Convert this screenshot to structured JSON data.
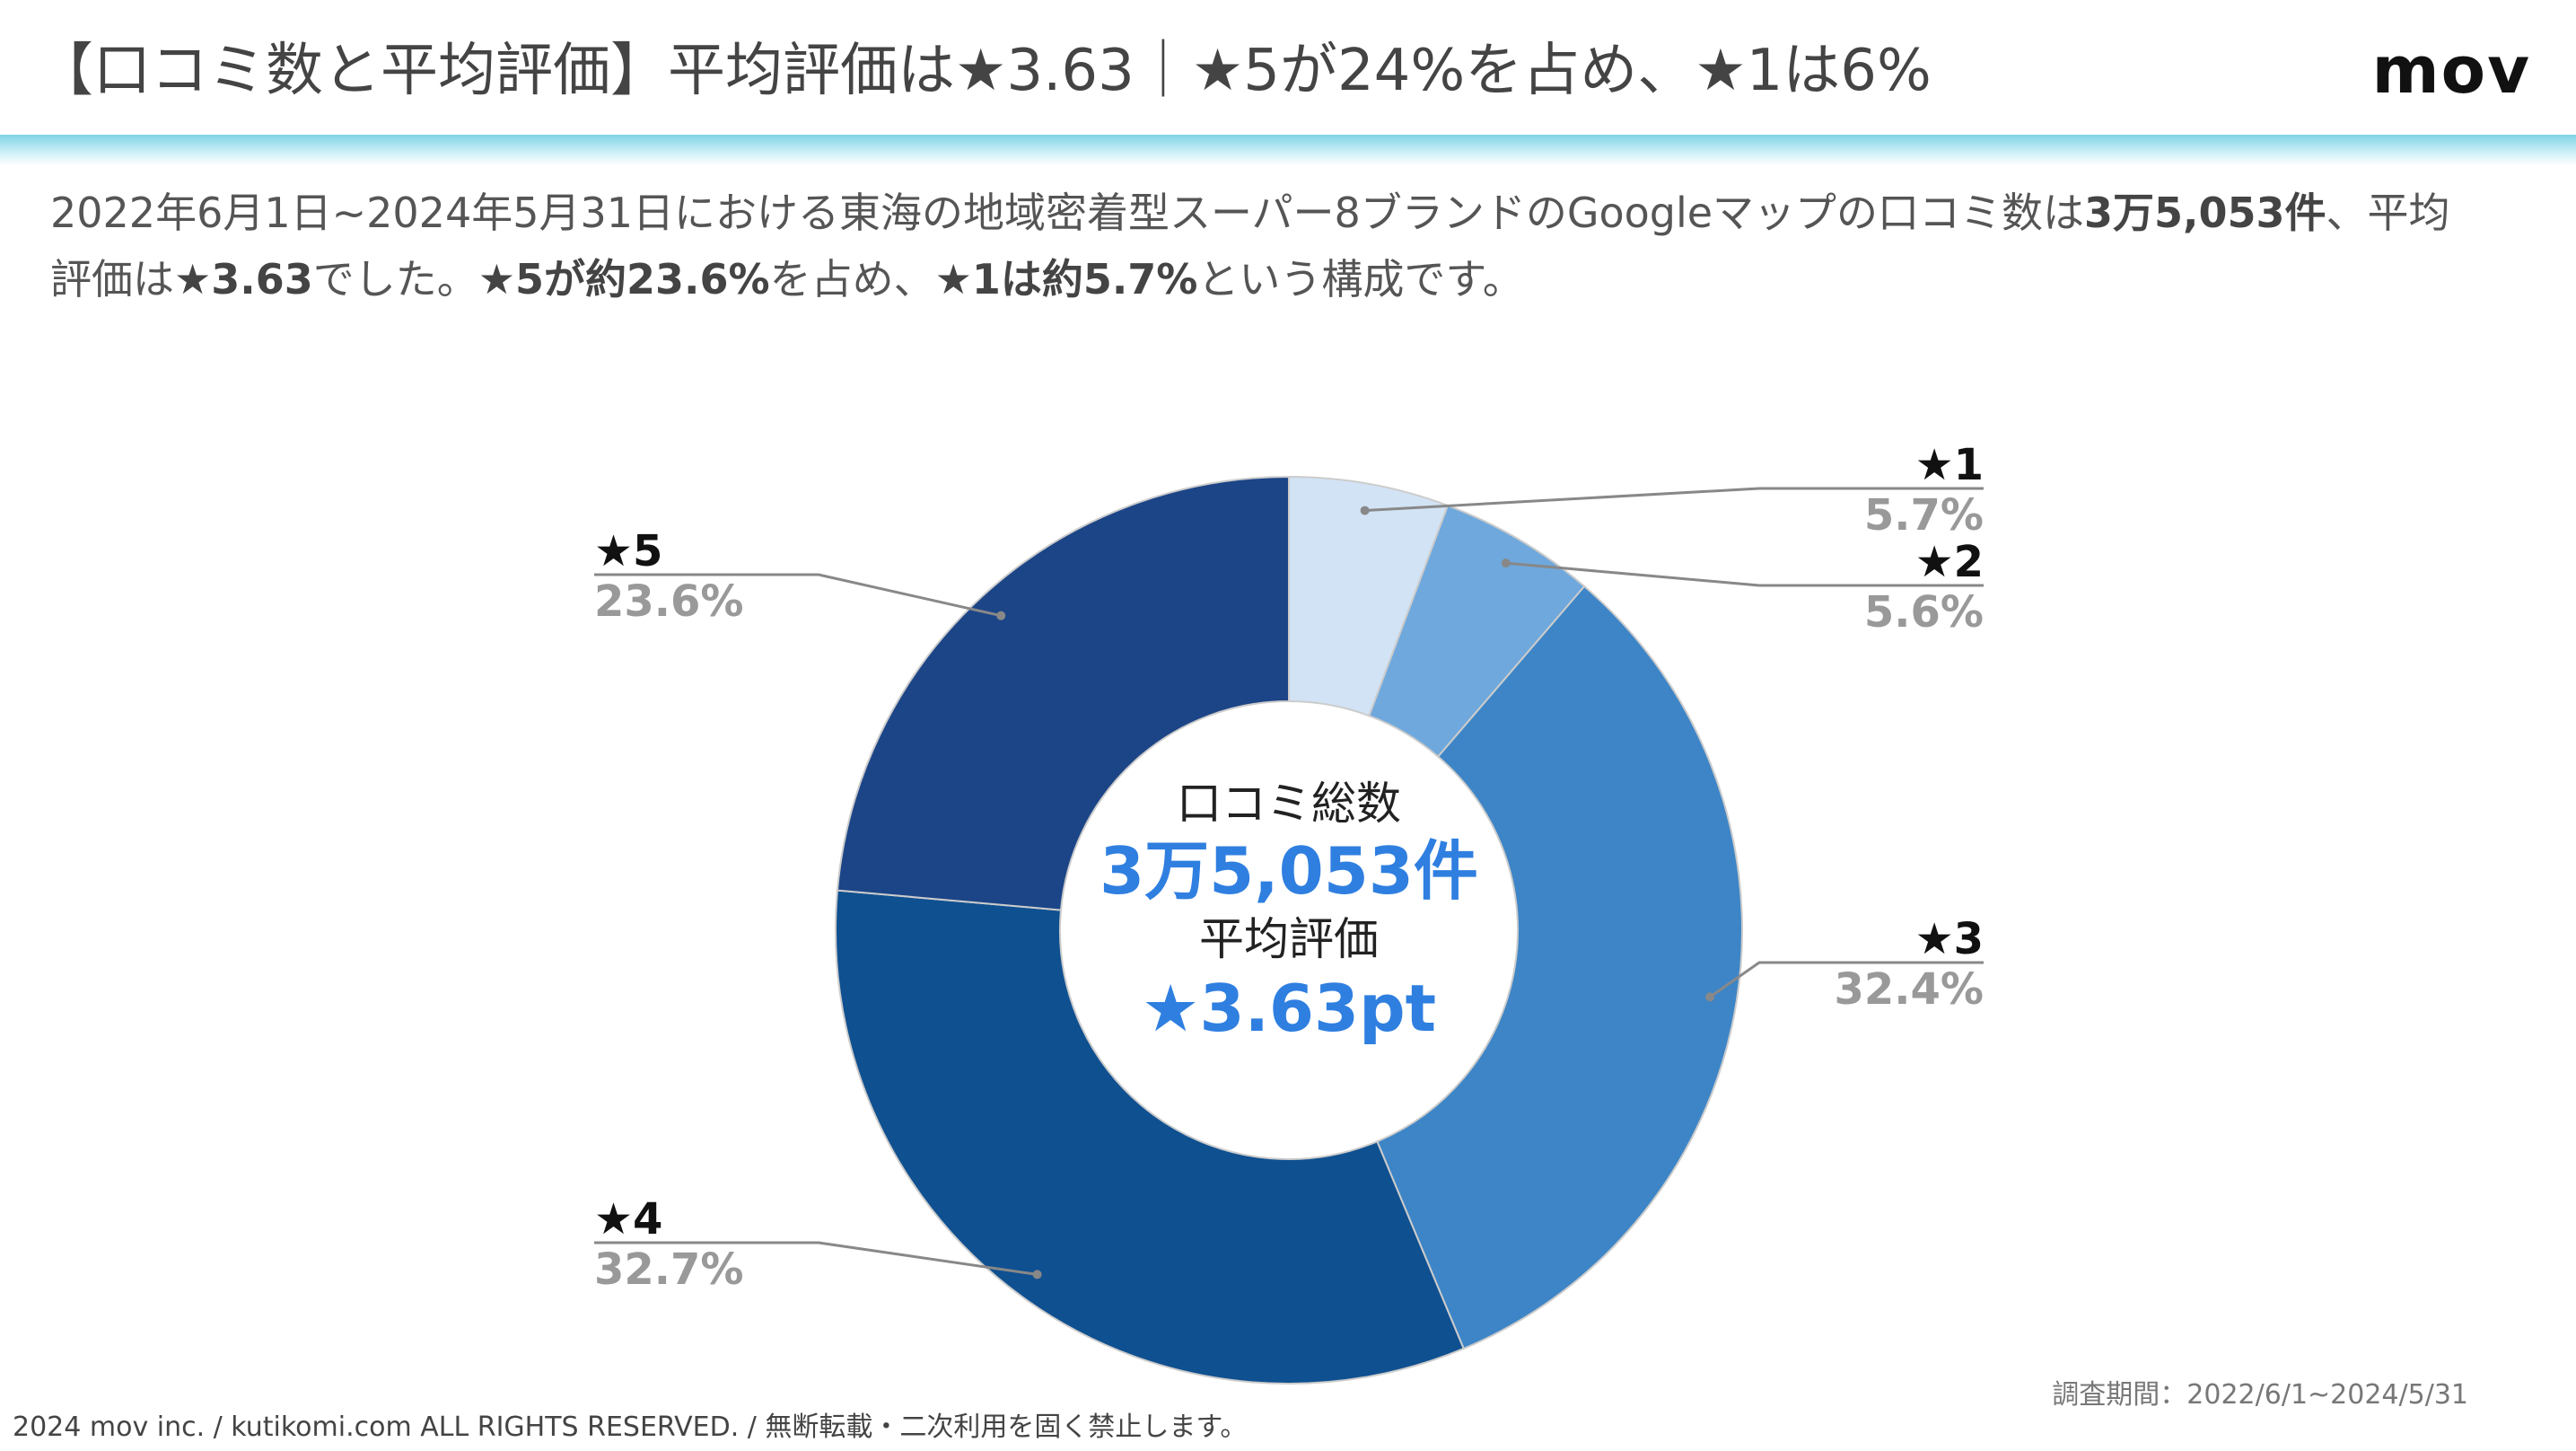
{
  "header": {
    "title": "【口コミ数と平均評価】平均評価は★3.63｜★5が24%を占め、★1は6%",
    "logo": "mov"
  },
  "description": {
    "segments": [
      {
        "text": "2022年6月1日~2024年5月31日における東海の地域密着型スーパー8ブランドのGoogleマップの口コミ数は",
        "bold": false
      },
      {
        "text": "3万5,053件",
        "bold": true
      },
      {
        "text": "、平均評価は",
        "bold": false
      },
      {
        "text": "★3.63",
        "bold": true
      },
      {
        "text": "でした。",
        "bold": false
      },
      {
        "text": "★5が約23.6%",
        "bold": true
      },
      {
        "text": "を占め、",
        "bold": false
      },
      {
        "text": "★1は約5.7%",
        "bold": true
      },
      {
        "text": "という構成です。",
        "bold": false
      }
    ]
  },
  "chart_data": {
    "type": "pie",
    "categories": [
      "★1",
      "★2",
      "★3",
      "★4",
      "★5"
    ],
    "values": [
      5.7,
      5.6,
      32.4,
      32.7,
      23.6
    ],
    "value_labels": [
      "5.7%",
      "5.6%",
      "32.4%",
      "32.7%",
      "23.6%"
    ],
    "colors": [
      "#d2e3f5",
      "#6fa8dc",
      "#3d85c6",
      "#0f5090",
      "#1c4587"
    ],
    "center": {
      "line1": "口コミ総数",
      "line2": "3万5,053件",
      "line3": "平均評価",
      "line4": "★3.63pt"
    }
  },
  "footer": {
    "period": "調査期間：2022/6/1~2024/5/31",
    "copyright": "2024 mov inc. / kutikomi.com ALL RIGHTS RESERVED. / 無断転載・二次利用を固く禁止します。"
  }
}
